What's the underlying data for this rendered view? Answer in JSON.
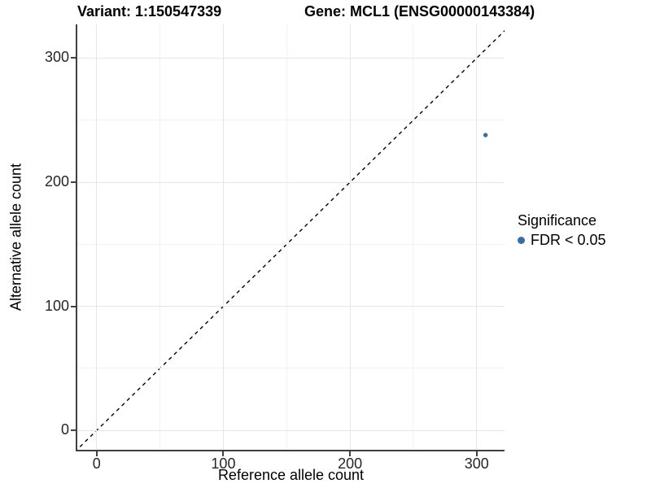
{
  "chart_data": {
    "type": "scatter",
    "title_left": "Variant: 1:150547339",
    "title_right": "Gene: MCL1 (ENSG00000143384)",
    "xlabel": "Reference allele count",
    "ylabel": "Alternative allele count",
    "x_ticks": [
      0,
      100,
      200,
      300
    ],
    "y_ticks": [
      0,
      100,
      200,
      300
    ],
    "x_minor_ticks": [
      50,
      150,
      250
    ],
    "y_minor_ticks": [
      50,
      150,
      250
    ],
    "xlim": [
      -15.3,
      322
    ],
    "ylim": [
      -15.6,
      327.2
    ],
    "grid": "major and minor gridlines, light gray on white panel",
    "series": [
      {
        "name": "FDR < 0.05",
        "color": "#3A6DA4",
        "marker": "circle",
        "marker_radius": 2.7,
        "points": [
          {
            "x": 307,
            "y": 238
          }
        ]
      }
    ],
    "reference_line": {
      "type": "identity",
      "equation": "y = x",
      "style": "dashed",
      "color": "#000000"
    },
    "legend": {
      "title": "Significance",
      "position": "right",
      "entries": [
        {
          "label": "FDR < 0.05",
          "color": "#3A6DA4",
          "marker": "circle"
        }
      ]
    }
  }
}
